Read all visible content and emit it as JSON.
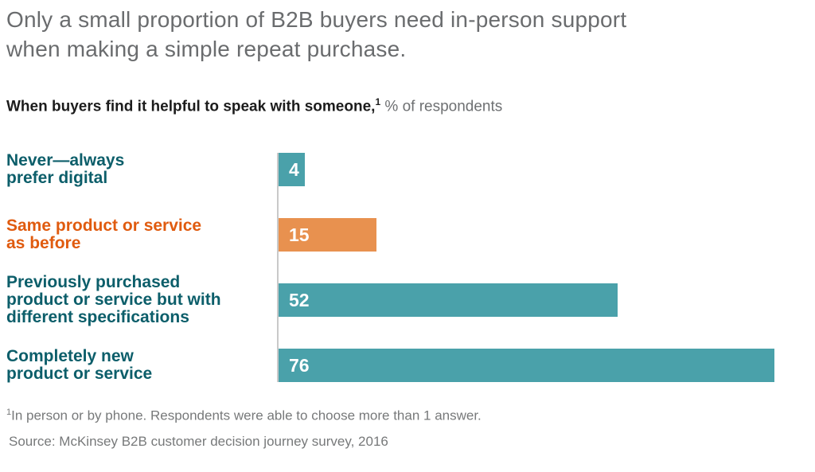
{
  "title": "Only a small proportion of B2B buyers need in-person support\nwhen making a simple repeat purchase.",
  "subtitle": {
    "bold": "When buyers find it helpful to speak with someone,",
    "superscript": "1",
    "rest": " % of respondents"
  },
  "footnote": {
    "superscript": "1",
    "text": "In person or by phone. Respondents were able to choose more than 1 answer."
  },
  "source": "Source: McKinsey B2B customer decision journey survey, 2016",
  "colors": {
    "teal_bar": "#4AA1AA",
    "orange_bar": "#E8914F",
    "teal_label_text": "#0C5E6A",
    "orange_label_text": "#E05B0F",
    "title_gray": "#6A6C6E",
    "axis_line_gray": "#C9C9C9",
    "bar_value_text": "#FFFFFF"
  },
  "chart_data": {
    "type": "bar",
    "orientation": "horizontal",
    "title": "When buyers find it helpful to speak with someone, % of respondents",
    "xlabel": "% of respondents",
    "ylabel": "",
    "xlim": [
      0,
      80
    ],
    "grid": false,
    "legend": "none",
    "categories": [
      "Never—always prefer digital",
      "Same product or service as before",
      "Previously purchased product or service but with different specifications",
      "Completely new product or service"
    ],
    "values": [
      4,
      15,
      52,
      76
    ],
    "rows": [
      {
        "label": "Never—always\nprefer digital",
        "value": 4,
        "color": "#4AA1AA",
        "label_color": "#0C5E6A"
      },
      {
        "label": "Same product or service\nas before",
        "value": 15,
        "color": "#E8914F",
        "label_color": "#E05B0F"
      },
      {
        "label": "Previously purchased\nproduct or service but with\ndifferent specifications",
        "value": 52,
        "color": "#4AA1AA",
        "label_color": "#0C5E6A"
      },
      {
        "label": "Completely new\nproduct or service",
        "value": 76,
        "color": "#4AA1AA",
        "label_color": "#0C5E6A"
      }
    ]
  }
}
